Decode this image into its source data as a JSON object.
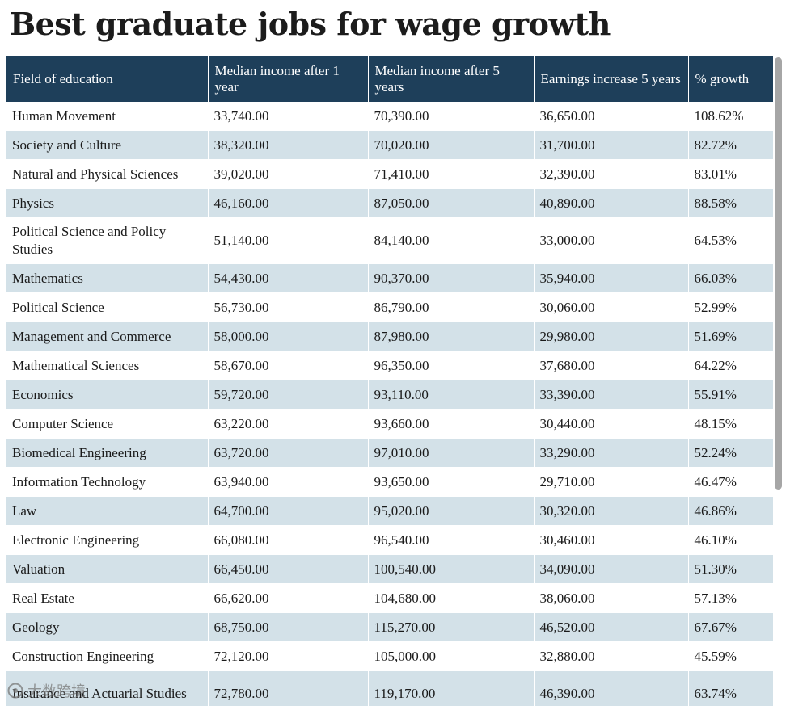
{
  "chart_data": {
    "type": "table",
    "title": "Best graduate jobs for wage growth",
    "columns": [
      "Field of education",
      "Median income after 1 year",
      "Median income after 5 years",
      "Earnings increase 5 years",
      "% growth"
    ],
    "rows": [
      [
        "Human Movement",
        "33,740.00",
        "70,390.00",
        "36,650.00",
        "108.62%"
      ],
      [
        "Society and Culture",
        "38,320.00",
        "70,020.00",
        "31,700.00",
        "82.72%"
      ],
      [
        "Natural and Physical Sciences",
        "39,020.00",
        "71,410.00",
        "32,390.00",
        "83.01%"
      ],
      [
        "Physics",
        "46,160.00",
        "87,050.00",
        "40,890.00",
        "88.58%"
      ],
      [
        "Political Science and Policy Studies",
        "51,140.00",
        "84,140.00",
        "33,000.00",
        "64.53%"
      ],
      [
        "Mathematics",
        "54,430.00",
        "90,370.00",
        "35,940.00",
        "66.03%"
      ],
      [
        "Political Science",
        "56,730.00",
        "86,790.00",
        "30,060.00",
        "52.99%"
      ],
      [
        "Management and Commerce",
        "58,000.00",
        "87,980.00",
        "29,980.00",
        "51.69%"
      ],
      [
        "Mathematical Sciences",
        "58,670.00",
        "96,350.00",
        "37,680.00",
        "64.22%"
      ],
      [
        "Economics",
        "59,720.00",
        "93,110.00",
        "33,390.00",
        "55.91%"
      ],
      [
        "Computer Science",
        "63,220.00",
        "93,660.00",
        "30,440.00",
        "48.15%"
      ],
      [
        "Biomedical Engineering",
        "63,720.00",
        "97,010.00",
        "33,290.00",
        "52.24%"
      ],
      [
        "Information Technology",
        "63,940.00",
        "93,650.00",
        "29,710.00",
        "46.47%"
      ],
      [
        "Law",
        "64,700.00",
        "95,020.00",
        "30,320.00",
        "46.86%"
      ],
      [
        "Electronic Engineering",
        "66,080.00",
        "96,540.00",
        "30,460.00",
        "46.10%"
      ],
      [
        "Valuation",
        "66,450.00",
        "100,540.00",
        "34,090.00",
        "51.30%"
      ],
      [
        "Real Estate",
        "66,620.00",
        "104,680.00",
        "38,060.00",
        "57.13%"
      ],
      [
        "Geology",
        "68,750.00",
        "115,270.00",
        "46,520.00",
        "67.67%"
      ],
      [
        "Construction Engineering",
        "72,120.00",
        "105,000.00",
        "32,880.00",
        "45.59%"
      ],
      [
        "Insurance and Actuarial Studies",
        "72,780.00",
        "119,170.00",
        "46,390.00",
        "63.74%"
      ]
    ],
    "tall_rows": [
      4,
      19
    ],
    "colors": {
      "header_background": "#1e3f5a",
      "header_text": "#ffffff",
      "band_row": "#d3e1e8",
      "plain_row": "#ffffff"
    }
  },
  "watermark": {
    "text": "大数跨境",
    "icon": "watermark-logo-icon"
  }
}
